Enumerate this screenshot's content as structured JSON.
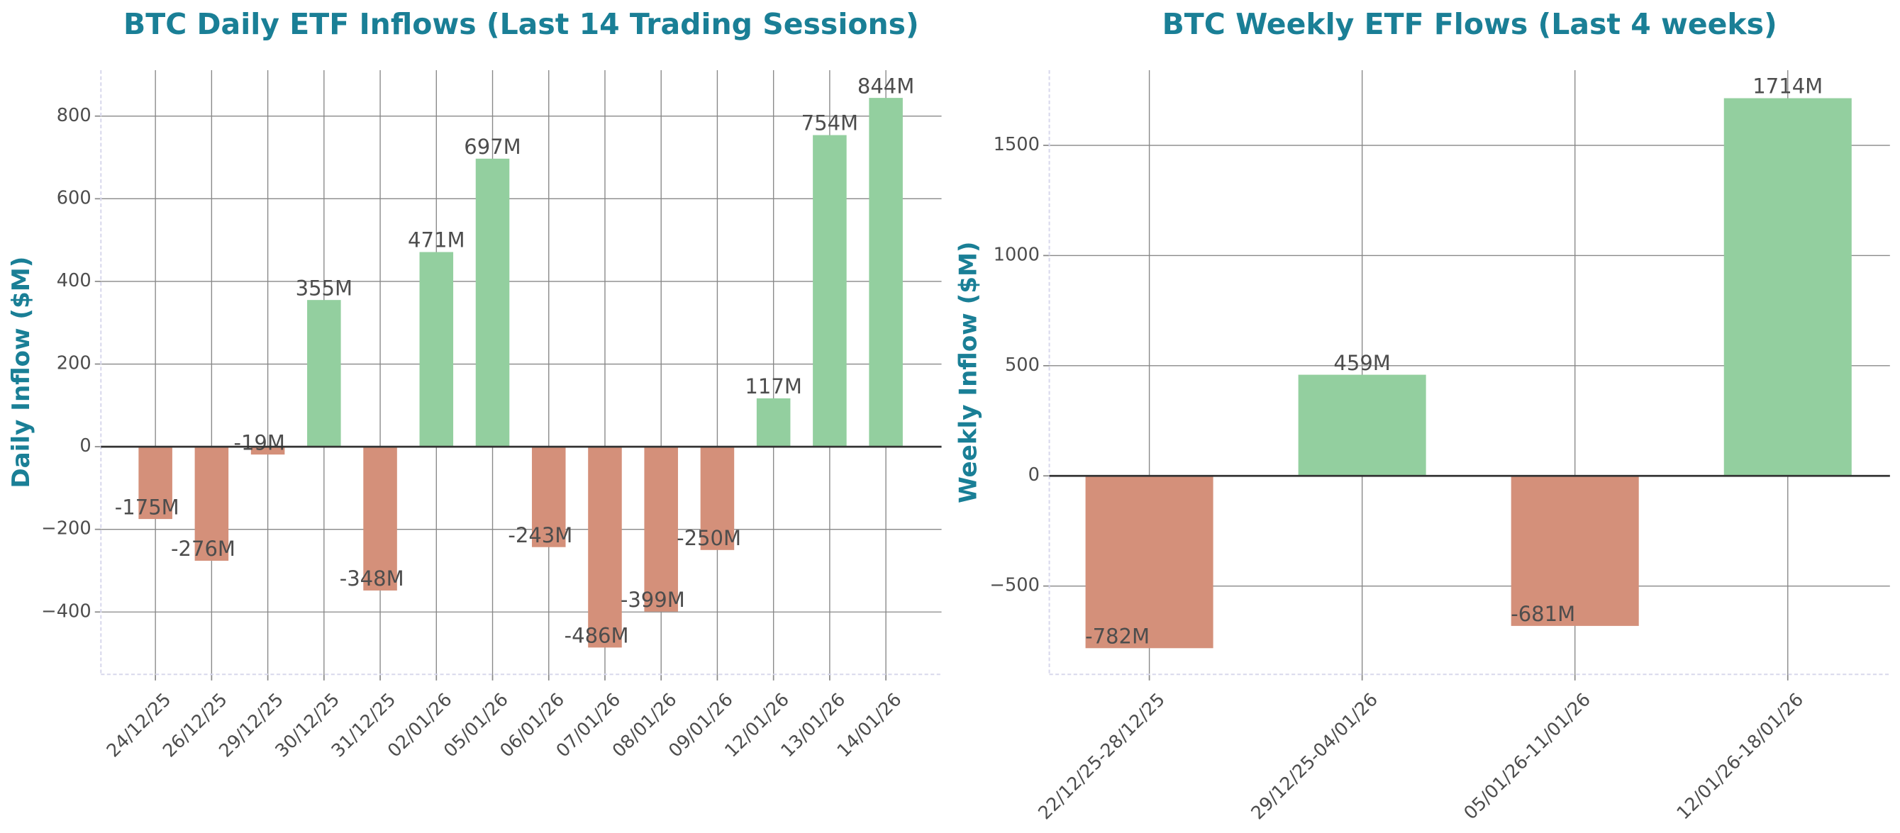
{
  "chart_data": [
    {
      "type": "bar",
      "title": "BTC Daily ETF Inflows (Last 14 Trading Sessions)",
      "y_label": "Daily Inflow ($M)",
      "categories": [
        "24/12/25",
        "26/12/25",
        "29/12/25",
        "30/12/25",
        "31/12/25",
        "02/01/26",
        "05/01/26",
        "06/01/26",
        "07/01/26",
        "08/01/26",
        "09/01/26",
        "12/01/26",
        "13/01/26",
        "14/01/26"
      ],
      "values": [
        -175,
        -276,
        -19,
        355,
        -348,
        471,
        697,
        -243,
        -486,
        -399,
        -250,
        117,
        754,
        844
      ],
      "value_labels": [
        "-175M",
        "-276M",
        "-19M",
        "355M",
        "-348M",
        "471M",
        "697M",
        "-243M",
        "-486M",
        "-399M",
        "-250M",
        "117M",
        "754M",
        "844M"
      ],
      "positive_color": "#93cf9f",
      "negative_color": "#d4907a",
      "ylim": [
        -551,
        911
      ],
      "yticks": [
        {
          "value": -400,
          "label": "−400"
        },
        {
          "value": -200,
          "label": "−200"
        },
        0,
        200,
        400,
        600,
        800
      ],
      "grid": true
    },
    {
      "type": "bar",
      "title": "BTC Weekly ETF Flows (Last 4 weeks)",
      "y_label": "Weekly Inflow ($M)",
      "categories": [
        "22/12/25-28/12/25",
        "29/12/25-04/01/26",
        "05/01/26-11/01/26",
        "12/01/26-18/01/26"
      ],
      "values": [
        -782,
        459,
        -681,
        1714
      ],
      "value_labels": [
        "-782M",
        "459M",
        "-681M",
        "1714M"
      ],
      "positive_color": "#93cf9f",
      "negative_color": "#d4907a",
      "ylim": [
        -901,
        1841
      ],
      "yticks": [
        {
          "value": -500,
          "label": "−500"
        },
        0,
        500,
        1000,
        1500
      ],
      "grid": true
    }
  ]
}
